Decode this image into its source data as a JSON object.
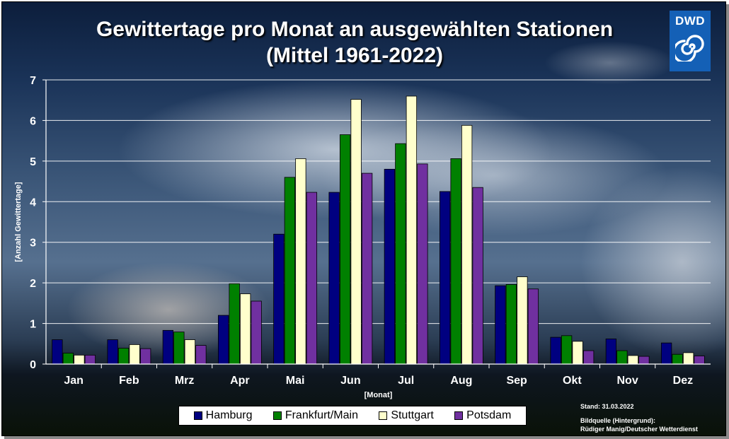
{
  "logo": {
    "text": "DWD"
  },
  "chart_data": {
    "type": "bar",
    "title": "Gewittertage pro Monat an ausgewählten Stationen",
    "subtitle": "(Mittel 1961-2022)",
    "xlabel": "[Monat]",
    "ylabel": "[Anzahl Gewittertage]",
    "ylim": [
      0,
      7
    ],
    "yticks": [
      "0",
      "1",
      "2",
      "3",
      "4",
      "5",
      "6",
      "7"
    ],
    "grid": true,
    "legend_position": "bottom",
    "categories": [
      "Jan",
      "Feb",
      "Mrz",
      "Apr",
      "Mai",
      "Jun",
      "Jul",
      "Aug",
      "Sep",
      "Okt",
      "Nov",
      "Dez"
    ],
    "series": [
      {
        "name": "Hamburg",
        "color": "#000080",
        "values": [
          0.6,
          0.6,
          0.83,
          1.2,
          3.2,
          4.23,
          4.8,
          4.25,
          1.93,
          0.66,
          0.62,
          0.52
        ]
      },
      {
        "name": "Frankfurt/Main",
        "color": "#008000",
        "values": [
          0.27,
          0.39,
          0.79,
          1.98,
          4.6,
          5.65,
          5.43,
          5.06,
          1.96,
          0.7,
          0.33,
          0.24
        ]
      },
      {
        "name": "Stuttgart",
        "color": "#ffffcc",
        "values": [
          0.22,
          0.48,
          0.6,
          1.73,
          5.06,
          6.52,
          6.6,
          5.88,
          2.15,
          0.56,
          0.21,
          0.28
        ]
      },
      {
        "name": "Potsdam",
        "color": "#7030a0",
        "values": [
          0.22,
          0.38,
          0.46,
          1.55,
          4.23,
          4.7,
          4.93,
          4.35,
          1.85,
          0.33,
          0.19,
          0.2
        ]
      }
    ]
  },
  "notes": {
    "stand": "Stand: 31.03.2022",
    "source_line1": "Bildquelle (Hintergrund):",
    "source_line2": "Rüdiger Manig/Deutscher Wetterdienst"
  }
}
